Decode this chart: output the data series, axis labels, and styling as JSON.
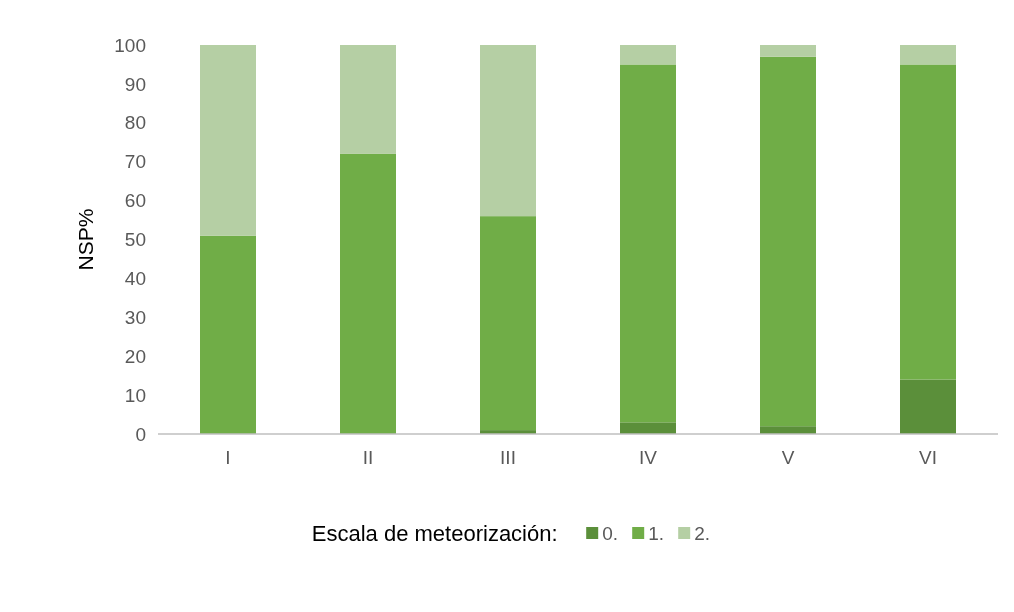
{
  "chart_data": {
    "type": "bar",
    "stacked": true,
    "ylabel": "NSP%",
    "legend_title": "Escala de meteorización:",
    "legend": "bottom",
    "categories": [
      "I",
      "II",
      "III",
      "IV",
      "V",
      "VI"
    ],
    "series": [
      {
        "name": "0.",
        "color": "#5b8f3a",
        "values": [
          0,
          0,
          1,
          3,
          2,
          14
        ]
      },
      {
        "name": "1.",
        "color": "#70ad47",
        "values": [
          51,
          72,
          55,
          92,
          95,
          81
        ]
      },
      {
        "name": "2.",
        "color": "#b5cfa4",
        "values": [
          49,
          28,
          44,
          5,
          3,
          5
        ]
      }
    ],
    "ylim": [
      0,
      100
    ],
    "yticks": [
      0,
      10,
      20,
      30,
      40,
      50,
      60,
      70,
      80,
      90,
      100
    ],
    "grid": false
  }
}
